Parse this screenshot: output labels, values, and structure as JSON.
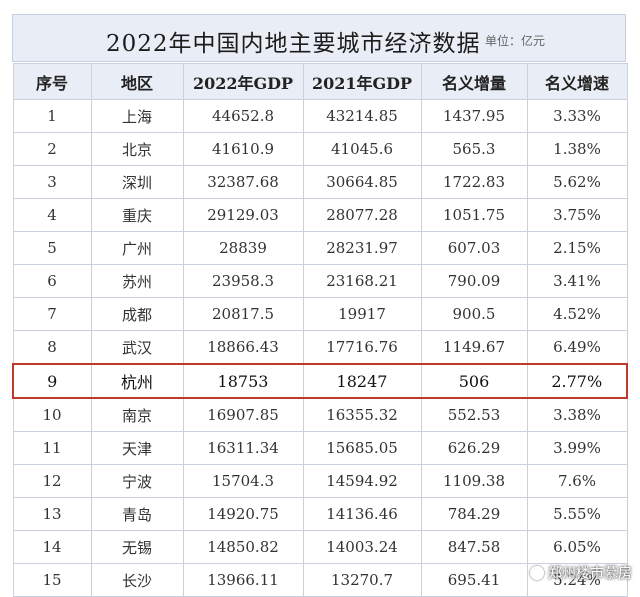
{
  "title": "2022年中国内地主要城市经济数据",
  "unit": "单位：亿元",
  "headers": [
    "序号",
    "地区",
    "2022年GDP",
    "2021年GDP",
    "名义增量",
    "名义增速"
  ],
  "rows": [
    [
      "1",
      "上海",
      "44652.8",
      "43214.85",
      "1437.95",
      "3.33%"
    ],
    [
      "2",
      "北京",
      "41610.9",
      "41045.6",
      "565.3",
      "1.38%"
    ],
    [
      "3",
      "深圳",
      "32387.68",
      "30664.85",
      "1722.83",
      "5.62%"
    ],
    [
      "4",
      "重庆",
      "29129.03",
      "28077.28",
      "1051.75",
      "3.75%"
    ],
    [
      "5",
      "广州",
      "28839",
      "28231.97",
      "607.03",
      "2.15%"
    ],
    [
      "6",
      "苏州",
      "23958.3",
      "23168.21",
      "790.09",
      "3.41%"
    ],
    [
      "7",
      "成都",
      "20817.5",
      "19917",
      "900.5",
      "4.52%"
    ],
    [
      "8",
      "武汉",
      "18866.43",
      "17716.76",
      "1149.67",
      "6.49%"
    ],
    [
      "9",
      "杭州",
      "18753",
      "18247",
      "506",
      "2.77%"
    ],
    [
      "10",
      "南京",
      "16907.85",
      "16355.32",
      "552.53",
      "3.38%"
    ],
    [
      "11",
      "天津",
      "16311.34",
      "15685.05",
      "626.29",
      "3.99%"
    ],
    [
      "12",
      "宁波",
      "15704.3",
      "14594.92",
      "1109.38",
      "7.6%"
    ],
    [
      "13",
      "青岛",
      "14920.75",
      "14136.46",
      "784.29",
      "5.55%"
    ],
    [
      "14",
      "无锡",
      "14850.82",
      "14003.24",
      "847.58",
      "6.05%"
    ],
    [
      "15",
      "长沙",
      "13966.11",
      "13270.7",
      "695.41",
      "5.24%"
    ]
  ],
  "highlight_row_index": 8,
  "highlight_color": "#c0392b",
  "header_bg": "#e9edf5",
  "watermark": "郑州楼市慕房"
}
